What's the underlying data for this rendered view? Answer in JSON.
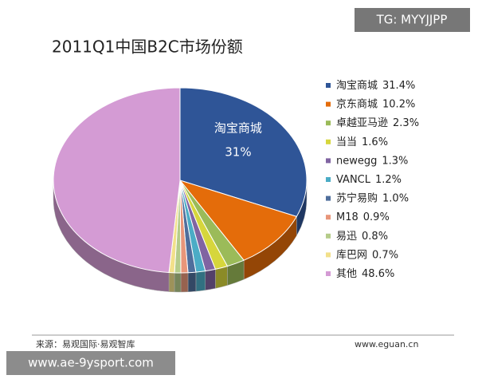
{
  "chart_data": {
    "type": "pie",
    "title": "2011Q1中国B2C市场份额",
    "categories": [
      "淘宝商城",
      "京东商城",
      "卓越亚马逊",
      "当当",
      "newegg",
      "VANCL",
      "苏宁易购",
      "M18",
      "易迅",
      "库巴网",
      "其他"
    ],
    "values": [
      31.4,
      10.2,
      2.3,
      1.6,
      1.3,
      1.2,
      1.0,
      0.9,
      0.8,
      0.7,
      48.6
    ],
    "value_labels": [
      "31.4%",
      "10.2%",
      "2.3%",
      "1.6%",
      "1.3%",
      "1.2%",
      "1.0%",
      "0.9%",
      "0.8%",
      "0.7%",
      "48.6%"
    ],
    "colors": [
      "#2f5597",
      "#e46c0a",
      "#9bbb59",
      "#d6d63c",
      "#8064a2",
      "#4bacc6",
      "#4f6e9c",
      "#e8967a",
      "#b5cc8a",
      "#f2e08a",
      "#d49bd4"
    ],
    "inner_label": "31%",
    "legend": "right",
    "source": "来源：易观国际·易观智库",
    "website": "www.eguan.cn",
    "watermarks": [
      "TG: MYYJJPP",
      "www.ae-9ysport.com"
    ]
  }
}
